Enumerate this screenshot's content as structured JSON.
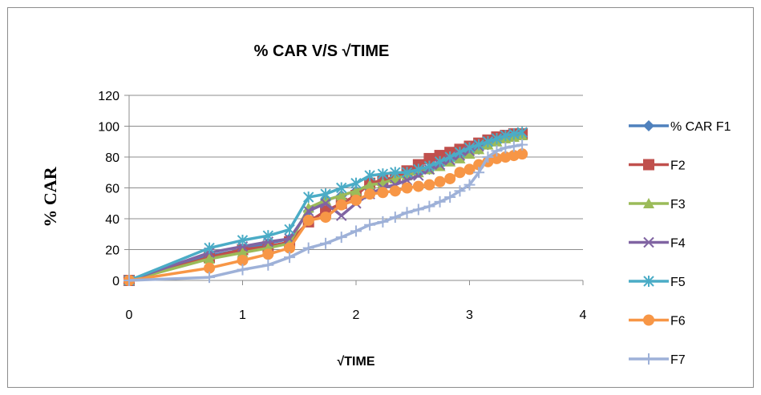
{
  "chart_data": {
    "type": "line",
    "title": "% CAR V/S √TIME",
    "xlabel": "√TIME",
    "ylabel": "% CAR",
    "xlim": [
      0,
      4
    ],
    "ylim": [
      0,
      120
    ],
    "xticks": [
      0,
      1,
      2,
      3,
      4
    ],
    "yticks": [
      0,
      20,
      40,
      60,
      80,
      100,
      120
    ],
    "xtick_labels": [
      "0",
      "1",
      "2",
      "3",
      "4"
    ],
    "ytick_labels": [
      "0",
      "20",
      "40",
      "60",
      "80",
      "100",
      "120"
    ],
    "grid": "horizontal",
    "legend_position": "right",
    "x": [
      0,
      0.707,
      1,
      1.225,
      1.414,
      1.581,
      1.732,
      1.871,
      2,
      2.121,
      2.236,
      2.345,
      2.449,
      2.55,
      2.646,
      2.739,
      2.828,
      2.915,
      3,
      3.082,
      3.162,
      3.24,
      3.317,
      3.391,
      3.464
    ],
    "series": [
      {
        "name": "% CAR F1",
        "color": "#4f81bd",
        "marker": "diamond",
        "values": [
          0,
          16,
          20,
          24,
          27,
          45,
          52,
          55,
          58,
          62,
          65,
          66,
          68,
          70,
          72,
          75,
          78,
          80,
          83,
          85,
          88,
          90,
          92,
          93,
          94
        ]
      },
      {
        "name": "F2",
        "color": "#c0504d",
        "marker": "square",
        "values": [
          0,
          15,
          20,
          22,
          25,
          38,
          45,
          50,
          55,
          63,
          65,
          67,
          71,
          75,
          79,
          81,
          83,
          85,
          87,
          89,
          91,
          93,
          94,
          95,
          95
        ]
      },
      {
        "name": "F3",
        "color": "#9bbb59",
        "marker": "triangle",
        "values": [
          0,
          14,
          18,
          21,
          24,
          47,
          52,
          55,
          58,
          62,
          63,
          66,
          68,
          70,
          72,
          74,
          77,
          79,
          82,
          85,
          88,
          90,
          92,
          93,
          94
        ]
      },
      {
        "name": "F4",
        "color": "#8064a2",
        "marker": "x",
        "values": [
          0,
          18,
          22,
          25,
          27,
          45,
          50,
          42,
          50,
          56,
          60,
          62,
          65,
          68,
          72,
          75,
          78,
          81,
          84,
          87,
          90,
          92,
          94,
          95,
          96
        ]
      },
      {
        "name": "F5",
        "color": "#4bacc6",
        "marker": "star",
        "values": [
          0,
          21,
          26,
          29,
          33,
          54,
          56,
          60,
          63,
          68,
          69,
          70,
          70,
          72,
          74,
          77,
          80,
          83,
          86,
          88,
          90,
          92,
          94,
          95,
          96
        ]
      },
      {
        "name": "F6",
        "color": "#f79646",
        "marker": "circle",
        "values": [
          0,
          8,
          13,
          17,
          21,
          39,
          41,
          49,
          52,
          56,
          57,
          58,
          60,
          61,
          62,
          64,
          66,
          70,
          72,
          75,
          77,
          79,
          80,
          81,
          82
        ]
      },
      {
        "name": "F7",
        "color": "#9eb1d8",
        "marker": "plus",
        "values": [
          0,
          2,
          7,
          10,
          15,
          21,
          24,
          28,
          32,
          36,
          38,
          41,
          44,
          46,
          48,
          51,
          54,
          58,
          62,
          70,
          80,
          84,
          86,
          87,
          88
        ]
      }
    ]
  }
}
